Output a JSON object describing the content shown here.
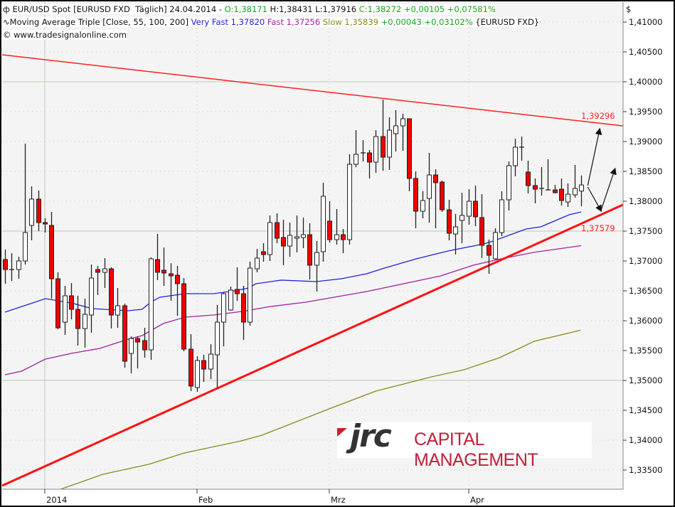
{
  "header": {
    "line1": {
      "icon": "candlestick-icon",
      "instrument": "EUR/USD Spot [EURUSD FXD  Täglich] 24.04.2014 - ",
      "open": "O:1,38171",
      "high_low": " H:1,38431 L:1,37916 ",
      "close_change": "C:1,38272 +0,00105 +0,07581%"
    },
    "line2": {
      "icon": "moving-average-icon",
      "indicator": "Moving Average Triple [Close, 55, 100, 200] ",
      "very_fast": "Very Fast 1,37820",
      "fast": " Fast 1,37256",
      "slow": " Slow 1,35839",
      "change": " +0,00043 +0,03102%",
      "symbol": " {EURUSD FXD}"
    },
    "copyright": "© www.tradesignalonline.com"
  },
  "logo": {
    "mark": "jrc",
    "text": "CAPITAL MANAGEMENT"
  },
  "chart_data": {
    "type": "candlestick",
    "currency_label": "$",
    "ylim": [
      1.3325,
      1.4135
    ],
    "y_ticks": [
      "1,41000",
      "1,40500",
      "1,40000",
      "1,39500",
      "1,39000",
      "1,38500",
      "1,38000",
      "1,37500",
      "1,37000",
      "1,36500",
      "1,36000",
      "1,35500",
      "1,35000",
      "1,34500",
      "1,34000",
      "1,33500"
    ],
    "y_tick_values": [
      1.41,
      1.405,
      1.4,
      1.395,
      1.39,
      1.385,
      1.38,
      1.375,
      1.37,
      1.365,
      1.36,
      1.355,
      1.35,
      1.345,
      1.34,
      1.335
    ],
    "x_ticks": [
      {
        "label": "2014",
        "index": 6
      },
      {
        "label": "Feb",
        "index": 29
      },
      {
        "label": "Mrz",
        "index": 49
      },
      {
        "label": "Apr",
        "index": 70
      }
    ],
    "grid": true,
    "candles_ohlc": [
      [
        1.37024,
        1.3719,
        1.36619,
        1.36857
      ],
      [
        1.36857,
        1.37131,
        1.36667,
        1.36857
      ],
      [
        1.36857,
        1.37071,
        1.36702,
        1.37
      ],
      [
        1.37,
        1.38964,
        1.3694,
        1.37476
      ],
      [
        1.37595,
        1.3825,
        1.37345,
        1.38036
      ],
      [
        1.38036,
        1.38179,
        1.375,
        1.37643
      ],
      [
        1.37643,
        1.37714,
        1.37476,
        1.37619
      ],
      [
        1.37595,
        1.37821,
        1.36369,
        1.36702
      ],
      [
        1.36702,
        1.3681,
        1.35857,
        1.35881
      ],
      [
        1.35976,
        1.36583,
        1.35762,
        1.36417
      ],
      [
        1.36417,
        1.36631,
        1.36024,
        1.3619
      ],
      [
        1.3619,
        1.36417,
        1.35583,
        1.35869
      ],
      [
        1.35869,
        1.36369,
        1.35548,
        1.36107
      ],
      [
        1.36095,
        1.3694,
        1.35798,
        1.36714
      ],
      [
        1.36857,
        1.36917,
        1.36429,
        1.3681
      ],
      [
        1.3681,
        1.37048,
        1.36548,
        1.36869
      ],
      [
        1.36869,
        1.36893,
        1.35869,
        1.36095
      ],
      [
        1.36095,
        1.36548,
        1.35881,
        1.3625
      ],
      [
        1.3625,
        1.36286,
        1.35214,
        1.35321
      ],
      [
        1.35452,
        1.35738,
        1.35119,
        1.35702
      ],
      [
        1.35702,
        1.35738,
        1.35202,
        1.35643
      ],
      [
        1.35667,
        1.35881,
        1.35381,
        1.35512
      ],
      [
        1.35512,
        1.3706,
        1.35345,
        1.37036
      ],
      [
        1.37024,
        1.37452,
        1.36679,
        1.3681
      ],
      [
        1.36845,
        1.37226,
        1.36583,
        1.36798
      ],
      [
        1.36786,
        1.36964,
        1.36333,
        1.3675
      ],
      [
        1.36762,
        1.36917,
        1.36083,
        1.36619
      ],
      [
        1.36619,
        1.36714,
        1.35488,
        1.35524
      ],
      [
        1.35524,
        1.35774,
        1.34821,
        1.34905
      ],
      [
        1.34881,
        1.35405,
        1.3481,
        1.35333
      ],
      [
        1.35333,
        1.35429,
        1.34976,
        1.3519
      ],
      [
        1.3519,
        1.35607,
        1.35024,
        1.3544
      ],
      [
        1.35429,
        1.36262,
        1.34881,
        1.35976
      ],
      [
        1.35976,
        1.36476,
        1.35571,
        1.36452
      ],
      [
        1.36179,
        1.36571,
        1.36167,
        1.36512
      ],
      [
        1.36524,
        1.36893,
        1.36333,
        1.36452
      ],
      [
        1.36452,
        1.36583,
        1.35679,
        1.35976
      ],
      [
        1.35976,
        1.36988,
        1.35917,
        1.36881
      ],
      [
        1.36869,
        1.37202,
        1.3681,
        1.37048
      ],
      [
        1.37155,
        1.37298,
        1.36988,
        1.37107
      ],
      [
        1.37107,
        1.37762,
        1.37,
        1.37643
      ],
      [
        1.37643,
        1.37798,
        1.37298,
        1.37381
      ],
      [
        1.37393,
        1.3769,
        1.36929,
        1.3725
      ],
      [
        1.3725,
        1.37643,
        1.37071,
        1.37429
      ],
      [
        1.37381,
        1.37762,
        1.37143,
        1.37405
      ],
      [
        1.37393,
        1.37726,
        1.37214,
        1.3744
      ],
      [
        1.3744,
        1.37631,
        1.3669,
        1.36929
      ],
      [
        1.36929,
        1.37333,
        1.36488,
        1.37143
      ],
      [
        1.37155,
        1.3831,
        1.36988,
        1.38083
      ],
      [
        1.37667,
        1.38,
        1.3731,
        1.37357
      ],
      [
        1.37357,
        1.37869,
        1.37274,
        1.3744
      ],
      [
        1.3744,
        1.37536,
        1.37131,
        1.37357
      ],
      [
        1.37357,
        1.38786,
        1.37274,
        1.38619
      ],
      [
        1.38619,
        1.3919,
        1.38571,
        1.38786
      ],
      [
        1.3881,
        1.39024,
        1.38667,
        1.3881
      ],
      [
        1.3881,
        1.38857,
        1.38381,
        1.38655
      ],
      [
        1.38655,
        1.3919,
        1.38476,
        1.39083
      ],
      [
        1.39083,
        1.39702,
        1.38512,
        1.38738
      ],
      [
        1.38738,
        1.39405,
        1.38524,
        1.3919
      ],
      [
        1.39131,
        1.39524,
        1.38833,
        1.39262
      ],
      [
        1.39262,
        1.39464,
        1.38845,
        1.39381
      ],
      [
        1.39381,
        1.39381,
        1.38167,
        1.38381
      ],
      [
        1.38381,
        1.385,
        1.37548,
        1.37833
      ],
      [
        1.37833,
        1.38167,
        1.37714,
        1.38012
      ],
      [
        1.38048,
        1.3881,
        1.37643,
        1.3844
      ],
      [
        1.3844,
        1.38536,
        1.37548,
        1.3831
      ],
      [
        1.38321,
        1.38345,
        1.37821,
        1.37857
      ],
      [
        1.37857,
        1.38024,
        1.37345,
        1.37464
      ],
      [
        1.37452,
        1.37786,
        1.37107,
        1.37571
      ],
      [
        1.37679,
        1.38143,
        1.37298,
        1.37762
      ],
      [
        1.3775,
        1.38202,
        1.37607,
        1.38
      ],
      [
        1.38,
        1.38262,
        1.37583,
        1.37738
      ],
      [
        1.37726,
        1.38119,
        1.37048,
        1.37262
      ],
      [
        1.37262,
        1.37357,
        1.36786,
        1.37095
      ],
      [
        1.37036,
        1.37548,
        1.37024,
        1.37476
      ],
      [
        1.37476,
        1.38167,
        1.37417,
        1.38024
      ],
      [
        1.38024,
        1.38667,
        1.37845,
        1.38595
      ],
      [
        1.38595,
        1.39048,
        1.38417,
        1.38905
      ],
      [
        1.38905,
        1.39083,
        1.38679,
        1.38905
      ],
      [
        1.38488,
        1.38679,
        1.38131,
        1.38262
      ],
      [
        1.38262,
        1.38381,
        1.37964,
        1.38202
      ],
      [
        1.38214,
        1.38571,
        1.38095,
        1.38214
      ],
      [
        1.3819,
        1.38702,
        1.38179,
        1.3819
      ],
      [
        1.3819,
        1.38274,
        1.38131,
        1.38143
      ],
      [
        1.38202,
        1.38381,
        1.37929,
        1.38012
      ],
      [
        1.37988,
        1.38298,
        1.37905,
        1.38119
      ],
      [
        1.38107,
        1.38607,
        1.3806,
        1.38214
      ],
      [
        1.38171,
        1.38431,
        1.37916,
        1.38272
      ]
    ],
    "moving_averages": [
      {
        "name": "Very Fast",
        "color": "#2020e0",
        "points": [
          [
            0,
            1.36143
          ],
          [
            6.1,
            1.36369
          ],
          [
            10,
            1.36298
          ],
          [
            13.2,
            1.36202
          ],
          [
            18.6,
            1.36167
          ],
          [
            20.7,
            1.3619
          ],
          [
            22,
            1.3631
          ],
          [
            23.4,
            1.36393
          ],
          [
            27.2,
            1.36452
          ],
          [
            31.5,
            1.36452
          ],
          [
            34.7,
            1.365
          ],
          [
            36.8,
            1.36548
          ],
          [
            37.9,
            1.36619
          ],
          [
            41.7,
            1.36679
          ],
          [
            47,
            1.36655
          ],
          [
            50.8,
            1.36702
          ],
          [
            54.6,
            1.36786
          ],
          [
            57.3,
            1.36881
          ],
          [
            62.1,
            1.37036
          ],
          [
            66.9,
            1.37167
          ],
          [
            72.3,
            1.37286
          ],
          [
            73.4,
            1.37321
          ],
          [
            78.7,
            1.37536
          ],
          [
            80.9,
            1.37571
          ],
          [
            85.2,
            1.37774
          ],
          [
            87,
            1.3782
          ]
        ]
      },
      {
        "name": "Fast",
        "color": "#a020a0",
        "points": [
          [
            0,
            1.35095
          ],
          [
            2.5,
            1.35155
          ],
          [
            6.1,
            1.35357
          ],
          [
            10,
            1.35452
          ],
          [
            14.3,
            1.35536
          ],
          [
            18.6,
            1.3569
          ],
          [
            20.7,
            1.3575
          ],
          [
            23.9,
            1.35952
          ],
          [
            27.2,
            1.3606
          ],
          [
            31.5,
            1.36095
          ],
          [
            35.8,
            1.36155
          ],
          [
            40.1,
            1.36238
          ],
          [
            45.4,
            1.3631
          ],
          [
            49.7,
            1.36393
          ],
          [
            54.6,
            1.36488
          ],
          [
            65.8,
            1.3675
          ],
          [
            70.7,
            1.36929
          ],
          [
            74.4,
            1.37024
          ],
          [
            79.8,
            1.37143
          ],
          [
            87,
            1.37256
          ]
        ]
      },
      {
        "name": "Slow",
        "color": "#8a8a1a",
        "points": [
          [
            8.4,
            1.33179
          ],
          [
            14.8,
            1.33429
          ],
          [
            21.7,
            1.33595
          ],
          [
            27.1,
            1.33786
          ],
          [
            35.7,
            1.33988
          ],
          [
            38.8,
            1.34083
          ],
          [
            49.5,
            1.34548
          ],
          [
            56,
            1.34821
          ],
          [
            64.4,
            1.3506
          ],
          [
            69.3,
            1.35179
          ],
          [
            74.7,
            1.35381
          ],
          [
            79.9,
            1.35655
          ],
          [
            86.9,
            1.35839
          ]
        ]
      }
    ],
    "trendlines": [
      {
        "label": "1,39296",
        "color": "#ff2020",
        "thick": false,
        "from": [
          -0.43,
          1.40452
        ],
        "to": [
          93.3,
          1.39262
        ]
      },
      {
        "label": "1,37579",
        "color": "#ff1010",
        "thick": true,
        "from": [
          -0.43,
          1.33238
        ],
        "to": [
          93.3,
          1.3794
        ]
      }
    ],
    "arrows": [
      {
        "from": [
          88.0,
          1.38262
        ],
        "to": [
          89.8,
          1.39202
        ]
      },
      {
        "from": [
          88.0,
          1.38238
        ],
        "to": [
          90.0,
          1.37845
        ]
      },
      {
        "from": [
          90.0,
          1.37845
        ],
        "to": [
          92.1,
          1.38536
        ]
      }
    ]
  }
}
